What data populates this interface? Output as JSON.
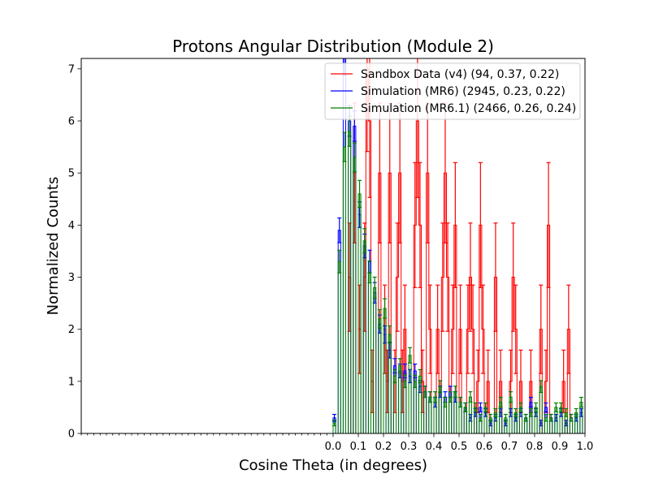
{
  "chart_data": {
    "type": "histogram",
    "title": "Protons Angular Distribution (Module 2)",
    "xlabel": "Cosine Theta (in degrees)",
    "ylabel": "Normalized Counts",
    "xlim": [
      -1.0,
      1.0
    ],
    "ylim": [
      0,
      7.2
    ],
    "x_ticks": [
      0.0,
      0.1,
      0.2,
      0.3,
      0.4,
      0.5,
      0.6,
      0.7,
      0.8,
      0.9,
      1.0
    ],
    "x_tick_labels": [
      "0.0",
      "0.1",
      "0.2",
      "0.3",
      "0.4",
      "0.5",
      "0.6",
      "0.7",
      "0.8",
      "0.9",
      "1.0"
    ],
    "y_ticks": [
      0,
      1,
      2,
      3,
      4,
      5,
      6,
      7
    ],
    "y_tick_labels": [
      "0",
      "1",
      "2",
      "3",
      "4",
      "5",
      "6",
      "7"
    ],
    "bin_width": 0.01,
    "legend_position": "top-right",
    "grid": false,
    "series": [
      {
        "name": "Sandbox Data (v4) (94, 0.37, 0.22)",
        "color": "#ff0000",
        "bins": [
          [
            0.06,
            3
          ],
          [
            0.08,
            5
          ],
          [
            0.1,
            2
          ],
          [
            0.12,
            3
          ],
          [
            0.13,
            7
          ],
          [
            0.14,
            6
          ],
          [
            0.15,
            1
          ],
          [
            0.18,
            5
          ],
          [
            0.2,
            2
          ],
          [
            0.21,
            1
          ],
          [
            0.22,
            5
          ],
          [
            0.24,
            1
          ],
          [
            0.25,
            3
          ],
          [
            0.26,
            5
          ],
          [
            0.27,
            1
          ],
          [
            0.28,
            2
          ],
          [
            0.32,
            4
          ],
          [
            0.33,
            6
          ],
          [
            0.34,
            4
          ],
          [
            0.35,
            1
          ],
          [
            0.37,
            5
          ],
          [
            0.38,
            2
          ],
          [
            0.41,
            2
          ],
          [
            0.43,
            3
          ],
          [
            0.44,
            5
          ],
          [
            0.45,
            3
          ],
          [
            0.47,
            2
          ],
          [
            0.48,
            4
          ],
          [
            0.5,
            2
          ],
          [
            0.53,
            2
          ],
          [
            0.54,
            3
          ],
          [
            0.55,
            2
          ],
          [
            0.57,
            1
          ],
          [
            0.58,
            4
          ],
          [
            0.59,
            2
          ],
          [
            0.61,
            1
          ],
          [
            0.64,
            3
          ],
          [
            0.66,
            1
          ],
          [
            0.7,
            1
          ],
          [
            0.71,
            3
          ],
          [
            0.72,
            2
          ],
          [
            0.74,
            1
          ],
          [
            0.78,
            1
          ],
          [
            0.82,
            2
          ],
          [
            0.84,
            1
          ],
          [
            0.85,
            4
          ],
          [
            0.91,
            1
          ],
          [
            0.93,
            2
          ]
        ]
      },
      {
        "name": "Simulation (MR6) (2945, 0.23, 0.22)",
        "color": "#0000ff",
        "bins": [
          [
            0.0,
            0.3
          ],
          [
            0.02,
            3.9
          ],
          [
            0.04,
            7.2
          ],
          [
            0.06,
            6.0
          ],
          [
            0.08,
            5.9
          ],
          [
            0.1,
            4.2
          ],
          [
            0.12,
            3.6
          ],
          [
            0.14,
            3.3
          ],
          [
            0.16,
            2.7
          ],
          [
            0.18,
            2.1
          ],
          [
            0.2,
            1.9
          ],
          [
            0.22,
            1.6
          ],
          [
            0.24,
            1.3
          ],
          [
            0.26,
            1.2
          ],
          [
            0.28,
            1.2
          ],
          [
            0.3,
            1.1
          ],
          [
            0.32,
            1.2
          ],
          [
            0.34,
            0.9
          ],
          [
            0.36,
            0.8
          ],
          [
            0.38,
            0.7
          ],
          [
            0.4,
            0.6
          ],
          [
            0.42,
            0.8
          ],
          [
            0.44,
            0.7
          ],
          [
            0.46,
            0.8
          ],
          [
            0.48,
            0.7
          ],
          [
            0.5,
            0.6
          ],
          [
            0.52,
            0.5
          ],
          [
            0.54,
            0.3
          ],
          [
            0.56,
            0.4
          ],
          [
            0.58,
            0.5
          ],
          [
            0.6,
            0.4
          ],
          [
            0.62,
            0.2
          ],
          [
            0.64,
            0.3
          ],
          [
            0.66,
            0.4
          ],
          [
            0.68,
            0.2
          ],
          [
            0.7,
            0.4
          ],
          [
            0.72,
            0.3
          ],
          [
            0.74,
            0.4
          ],
          [
            0.76,
            0.3
          ],
          [
            0.78,
            0.6
          ],
          [
            0.8,
            0.4
          ],
          [
            0.82,
            0.2
          ],
          [
            0.84,
            0.5
          ],
          [
            0.86,
            0.3
          ],
          [
            0.88,
            0.3
          ],
          [
            0.9,
            0.4
          ],
          [
            0.92,
            0.2
          ],
          [
            0.94,
            0.3
          ],
          [
            0.96,
            0.3
          ],
          [
            0.98,
            0.4
          ]
        ]
      },
      {
        "name": "Simulation (MR6.1) (2466, 0.26, 0.24)",
        "color": "#008000",
        "bins": [
          [
            0.0,
            0.2
          ],
          [
            0.02,
            3.3
          ],
          [
            0.04,
            5.5
          ],
          [
            0.06,
            5.8
          ],
          [
            0.08,
            5.3
          ],
          [
            0.1,
            4.6
          ],
          [
            0.12,
            3.7
          ],
          [
            0.14,
            3.1
          ],
          [
            0.16,
            2.8
          ],
          [
            0.18,
            2.2
          ],
          [
            0.2,
            2.4
          ],
          [
            0.22,
            1.9
          ],
          [
            0.24,
            1.1
          ],
          [
            0.26,
            1.3
          ],
          [
            0.28,
            1.0
          ],
          [
            0.3,
            1.5
          ],
          [
            0.32,
            1.0
          ],
          [
            0.34,
            1.1
          ],
          [
            0.36,
            0.8
          ],
          [
            0.38,
            0.7
          ],
          [
            0.4,
            0.7
          ],
          [
            0.42,
            0.9
          ],
          [
            0.44,
            0.6
          ],
          [
            0.46,
            0.7
          ],
          [
            0.48,
            0.8
          ],
          [
            0.5,
            0.6
          ],
          [
            0.52,
            0.5
          ],
          [
            0.54,
            0.7
          ],
          [
            0.56,
            0.5
          ],
          [
            0.58,
            0.3
          ],
          [
            0.6,
            0.5
          ],
          [
            0.62,
            0.3
          ],
          [
            0.64,
            0.4
          ],
          [
            0.66,
            0.6
          ],
          [
            0.68,
            0.3
          ],
          [
            0.7,
            0.7
          ],
          [
            0.72,
            0.4
          ],
          [
            0.74,
            0.5
          ],
          [
            0.76,
            0.3
          ],
          [
            0.78,
            0.4
          ],
          [
            0.8,
            0.5
          ],
          [
            0.82,
            0.9
          ],
          [
            0.84,
            0.3
          ],
          [
            0.86,
            0.3
          ],
          [
            0.88,
            0.5
          ],
          [
            0.9,
            0.5
          ],
          [
            0.92,
            0.4
          ],
          [
            0.94,
            0.3
          ],
          [
            0.96,
            0.4
          ],
          [
            0.98,
            0.6
          ]
        ]
      }
    ]
  }
}
